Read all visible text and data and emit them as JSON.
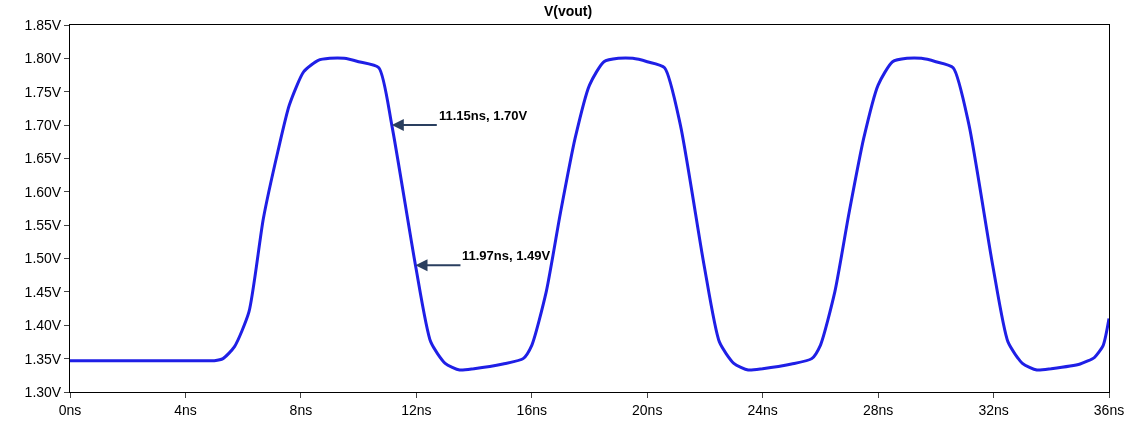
{
  "chart_data": {
    "type": "line",
    "title": "V(vout)",
    "x": [
      0,
      2,
      4,
      5.0,
      5.3,
      5.7,
      6.2,
      6.7,
      7.2,
      7.6,
      8.1,
      8.6,
      9,
      9.5,
      10,
      10.7,
      11.15,
      11.97,
      12.5,
      13,
      13.5,
      14,
      15,
      15.7,
      16,
      16.5,
      17,
      17.5,
      18,
      18.5,
      19,
      19.5,
      20,
      20.6,
      21.15,
      21.97,
      22.5,
      23,
      23.5,
      24,
      25,
      25.7,
      26,
      26.5,
      27,
      27.5,
      28,
      28.5,
      29,
      29.5,
      30,
      30.6,
      31.15,
      31.97,
      32.5,
      33,
      33.5,
      34,
      35,
      35.5,
      35.8,
      36
    ],
    "series": [
      {
        "color": "#1f1fe6",
        "values": [
          1.347,
          1.347,
          1.347,
          1.347,
          1.35,
          1.368,
          1.42,
          1.56,
          1.66,
          1.73,
          1.78,
          1.797,
          1.8,
          1.8,
          1.795,
          1.786,
          1.7,
          1.49,
          1.375,
          1.343,
          1.333,
          1.335,
          1.342,
          1.35,
          1.37,
          1.45,
          1.57,
          1.68,
          1.76,
          1.795,
          1.8,
          1.8,
          1.795,
          1.786,
          1.7,
          1.49,
          1.375,
          1.343,
          1.333,
          1.335,
          1.342,
          1.35,
          1.37,
          1.45,
          1.57,
          1.68,
          1.76,
          1.795,
          1.8,
          1.8,
          1.795,
          1.786,
          1.7,
          1.49,
          1.375,
          1.343,
          1.333,
          1.335,
          1.342,
          1.352,
          1.37,
          1.41
        ]
      }
    ],
    "xlim": [
      0,
      36
    ],
    "ylim": [
      1.3,
      1.85
    ],
    "xticks": [
      {
        "value": 0,
        "label": "0ns"
      },
      {
        "value": 4,
        "label": "4ns"
      },
      {
        "value": 8,
        "label": "8ns"
      },
      {
        "value": 12,
        "label": "12ns"
      },
      {
        "value": 16,
        "label": "16ns"
      },
      {
        "value": 20,
        "label": "20ns"
      },
      {
        "value": 24,
        "label": "24ns"
      },
      {
        "value": 28,
        "label": "28ns"
      },
      {
        "value": 32,
        "label": "32ns"
      },
      {
        "value": 36,
        "label": "36ns"
      }
    ],
    "yticks": [
      {
        "value": 1.3,
        "label": "1.30V"
      },
      {
        "value": 1.35,
        "label": "1.35V"
      },
      {
        "value": 1.4,
        "label": "1.40V"
      },
      {
        "value": 1.45,
        "label": "1.45V"
      },
      {
        "value": 1.5,
        "label": "1.50V"
      },
      {
        "value": 1.55,
        "label": "1.55V"
      },
      {
        "value": 1.6,
        "label": "1.60V"
      },
      {
        "value": 1.65,
        "label": "1.65V"
      },
      {
        "value": 1.7,
        "label": "1.70V"
      },
      {
        "value": 1.75,
        "label": "1.75V"
      },
      {
        "value": 1.8,
        "label": "1.80V"
      },
      {
        "value": 1.85,
        "label": "1.85V"
      }
    ],
    "annotations": [
      {
        "text": "11.15ns, 1.70V",
        "x": 11.15,
        "y": 1.7
      },
      {
        "text": "11.97ns, 1.49V",
        "x": 11.97,
        "y": 1.49
      }
    ],
    "marker": "none",
    "line_style": "solid"
  }
}
